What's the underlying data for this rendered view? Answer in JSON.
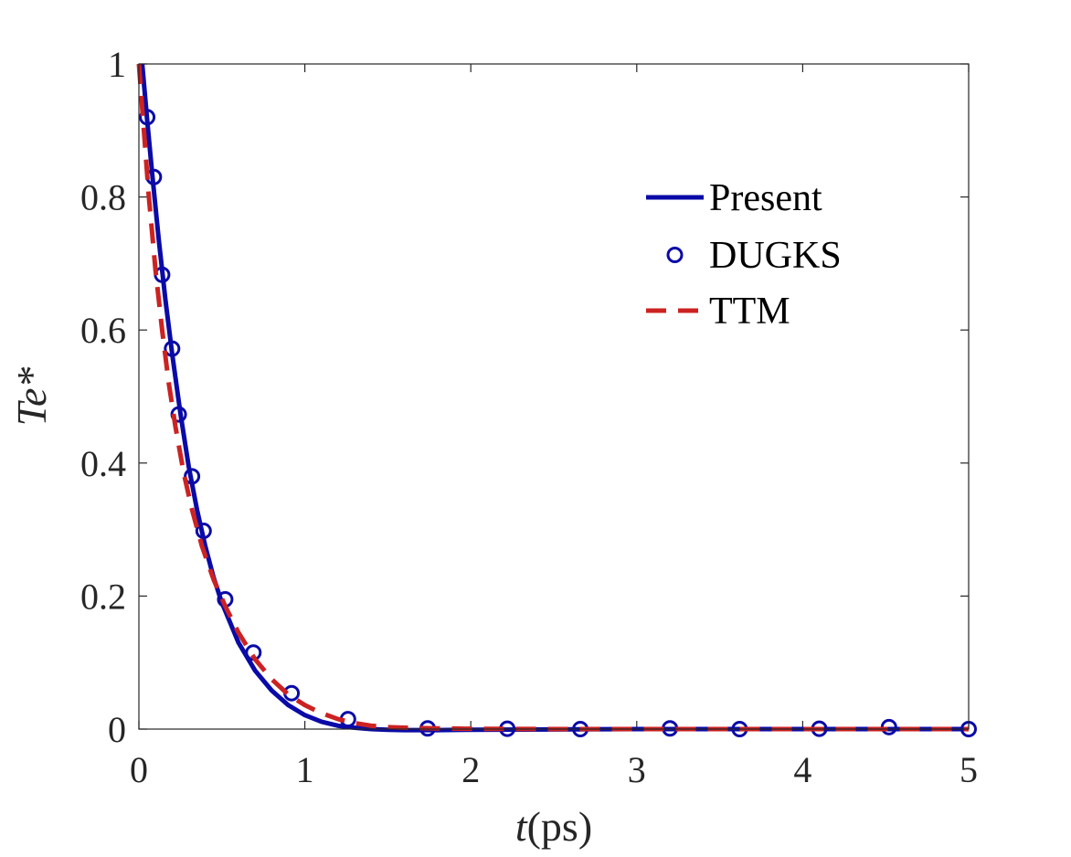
{
  "chart_data": {
    "type": "line",
    "title": "",
    "xlabel": "t(ps)",
    "xlabel_var": "t",
    "xlabel_unit": "(ps)",
    "ylabel": "Te*",
    "xlim": [
      0,
      5
    ],
    "ylim": [
      0,
      1
    ],
    "xticks": [
      0,
      1,
      2,
      3,
      4,
      5
    ],
    "yticks": [
      0,
      0.2,
      0.4,
      0.6,
      0.8,
      1
    ],
    "xtick_labels": [
      "0",
      "1",
      "2",
      "3",
      "4",
      "5"
    ],
    "ytick_labels": [
      "0",
      "0.2",
      "0.4",
      "0.6",
      "0.8",
      "1"
    ],
    "legend_position": "top-right",
    "series": [
      {
        "name": "Present",
        "style": "solid",
        "color": "#0a0aa8",
        "x": [
          0.02,
          0.05,
          0.08,
          0.12,
          0.16,
          0.2,
          0.25,
          0.3,
          0.35,
          0.4,
          0.45,
          0.5,
          0.6,
          0.7,
          0.8,
          0.9,
          1.0,
          1.1,
          1.2,
          1.3,
          1.4,
          1.5,
          1.6,
          1.7,
          1.8,
          2.0,
          2.5,
          3.0,
          3.5,
          4.0,
          4.5,
          5.0
        ],
        "y": [
          1.0,
          0.915,
          0.835,
          0.735,
          0.645,
          0.565,
          0.475,
          0.395,
          0.33,
          0.275,
          0.228,
          0.19,
          0.13,
          0.088,
          0.058,
          0.036,
          0.021,
          0.011,
          0.005,
          0.002,
          0.0,
          -0.001,
          -0.0015,
          -0.0015,
          -0.0015,
          -0.001,
          -0.0005,
          0.0,
          0.0,
          0.0,
          0.0,
          0.0
        ]
      },
      {
        "name": "DUGKS",
        "style": "markers",
        "color": "#0a0aa8",
        "x": [
          0.05,
          0.09,
          0.14,
          0.2,
          0.24,
          0.32,
          0.39,
          0.52,
          0.69,
          0.92,
          1.26,
          1.74,
          2.22,
          2.66,
          3.2,
          3.62,
          4.1,
          4.52,
          5.0
        ],
        "y": [
          0.92,
          0.83,
          0.683,
          0.572,
          0.473,
          0.38,
          0.298,
          0.195,
          0.115,
          0.054,
          0.015,
          0.001,
          0.0005,
          0.0,
          0.001,
          0.0,
          0.0005,
          0.003,
          0.0
        ]
      },
      {
        "name": "TTM",
        "style": "dashed",
        "color": "#cc2222",
        "x": [
          0.0,
          0.03,
          0.06,
          0.1,
          0.14,
          0.18,
          0.22,
          0.27,
          0.32,
          0.38,
          0.45,
          0.52,
          0.6,
          0.7,
          0.8,
          0.9,
          1.0,
          1.1,
          1.2,
          1.3,
          1.4,
          1.5,
          1.6,
          1.8,
          2.0,
          2.5,
          3.0,
          3.5,
          4.0,
          4.5,
          5.0
        ],
        "y": [
          1.0,
          0.9,
          0.8,
          0.69,
          0.6,
          0.52,
          0.455,
          0.385,
          0.33,
          0.275,
          0.225,
          0.185,
          0.145,
          0.105,
          0.075,
          0.052,
          0.036,
          0.024,
          0.015,
          0.009,
          0.005,
          0.003,
          0.002,
          0.001,
          0.0005,
          0.0,
          0.0,
          0.0,
          0.0,
          0.0,
          0.0
        ]
      }
    ]
  }
}
